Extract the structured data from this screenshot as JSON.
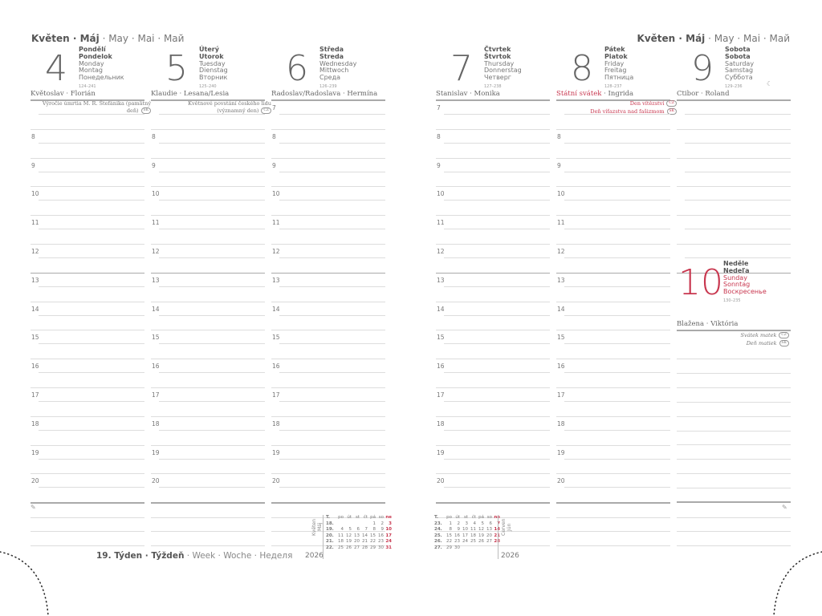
{
  "header": {
    "month_bold": "Květen · Máj",
    "month_rest": "· May · Mai · Май"
  },
  "footer": {
    "week_bold": "19. Týden · Týždeň",
    "week_rest": "· Week · Woche · Неделя"
  },
  "days": [
    {
      "num": "4",
      "cz": "Pondělí",
      "sk": "Pondelok",
      "en": "Monday",
      "de": "Montag",
      "ru": "Понедельник",
      "doy": "124–241",
      "nameday": "Květoslav · Florián",
      "holiday": [
        {
          "text": "Výročie úmrtia M. R. Štefánika (pamätný deň)",
          "badge": "SK"
        }
      ],
      "first_hour": 8
    },
    {
      "num": "5",
      "cz": "Úterý",
      "sk": "Utorok",
      "en": "Tuesday",
      "de": "Dienstag",
      "ru": "Вторник",
      "doy": "125–240",
      "nameday": "Klaudie · Lesana/Lesia",
      "holiday": [
        {
          "text": "Květnové povstání českého lidu (významný den)",
          "badge": "CZ"
        }
      ],
      "first_hour": 8
    },
    {
      "num": "6",
      "cz": "Středa",
      "sk": "Streda",
      "en": "Wednesday",
      "de": "Mittwoch",
      "ru": "Среда",
      "doy": "126–239",
      "nameday": "Radoslav/Radoslava · Hermína",
      "holiday": [],
      "first_hour": 7
    },
    {
      "num": "7",
      "cz": "Čtvrtek",
      "sk": "Štvrtok",
      "en": "Thursday",
      "de": "Donnerstag",
      "ru": "Четверг",
      "doy": "127–238",
      "nameday": "Stanislav · Monika",
      "holiday": [],
      "first_hour": 7
    },
    {
      "num": "8",
      "cz": "Pátek",
      "sk": "Piatok",
      "en": "Friday",
      "de": "Freitag",
      "ru": "Пятница",
      "doy": "128–237",
      "nameday_red": "Státní svátek",
      "nameday": "· Ingrida",
      "holiday": [
        {
          "text": "Den vítězství",
          "badge": "CZ"
        },
        {
          "text": "Deň víťazstva nad fašizmom",
          "badge": "SK"
        }
      ],
      "first_hour": 8,
      "red_holiday": true
    },
    {
      "num": "9",
      "cz": "Sobota",
      "sk": "Sobota",
      "en": "Saturday",
      "de": "Samstag",
      "ru": "Суббота",
      "doy": "129–236",
      "nameday": "Ctibor · Roland",
      "holiday": [],
      "first_hour": null,
      "moon": "☾"
    }
  ],
  "sunday": {
    "num": "10",
    "cz": "Neděle",
    "sk": "Nedeľa",
    "en": "Sunday",
    "de": "Sonntag",
    "ru": "Воскресенье",
    "doy": "130–235",
    "nameday": "Blažena · Viktória",
    "holiday": [
      {
        "text": "Svátek matek",
        "badge": "CZ"
      },
      {
        "text": "Deň matiek",
        "badge": "SK"
      }
    ]
  },
  "hours": [
    7,
    8,
    9,
    10,
    11,
    12,
    13,
    14,
    15,
    16,
    17,
    18,
    19,
    20
  ],
  "mini_calendars": [
    {
      "label1": "Květen",
      "label2": "Máj",
      "year": "2026",
      "head": [
        "T.",
        "po",
        "út",
        "st",
        "čt",
        "pá",
        "so",
        "ne"
      ],
      "weeks": [
        [
          "18.",
          "",
          "",
          "",
          "",
          "1",
          "2",
          "3"
        ],
        [
          "19.",
          "4",
          "5",
          "6",
          "7",
          "8",
          "9",
          "10"
        ],
        [
          "20.",
          "11",
          "12",
          "13",
          "14",
          "15",
          "16",
          "17"
        ],
        [
          "21.",
          "18",
          "19",
          "20",
          "21",
          "22",
          "23",
          "24"
        ],
        [
          "22.",
          "25",
          "26",
          "27",
          "28",
          "29",
          "30",
          "31"
        ]
      ]
    },
    {
      "label1": "Červen",
      "label2": "Jún",
      "year": "2026",
      "head": [
        "T.",
        "po",
        "út",
        "st",
        "čt",
        "pá",
        "so",
        "ne"
      ],
      "weeks": [
        [
          "23.",
          "1",
          "2",
          "3",
          "4",
          "5",
          "6",
          "7"
        ],
        [
          "24.",
          "8",
          "9",
          "10",
          "11",
          "12",
          "13",
          "14"
        ],
        [
          "25.",
          "15",
          "16",
          "17",
          "18",
          "19",
          "20",
          "21"
        ],
        [
          "26.",
          "22",
          "23",
          "24",
          "25",
          "26",
          "27",
          "28"
        ],
        [
          "27.",
          "29",
          "30",
          "",
          "",
          "",
          "",
          ""
        ]
      ]
    }
  ],
  "colors": {
    "accent": "#c8374f",
    "text": "#666666"
  }
}
